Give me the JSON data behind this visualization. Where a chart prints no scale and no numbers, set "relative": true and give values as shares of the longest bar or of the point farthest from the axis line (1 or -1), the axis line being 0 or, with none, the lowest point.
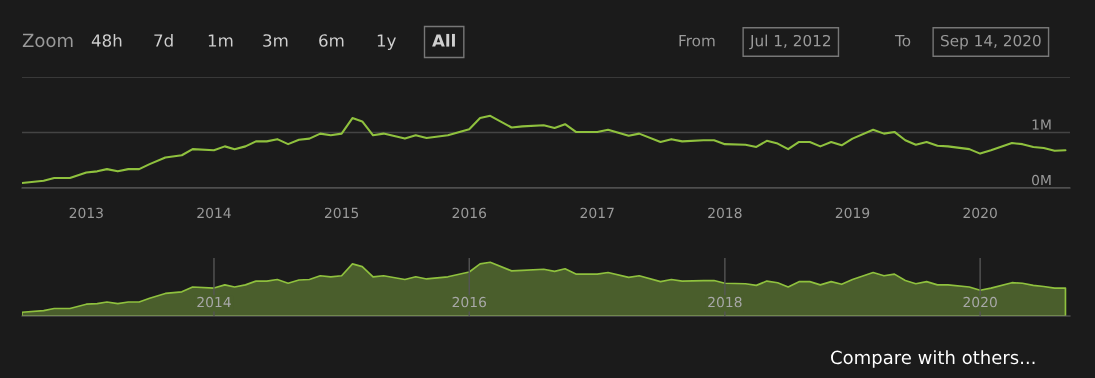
{
  "chart_data": [
    {
      "type": "line",
      "x": [
        "2012-07",
        "2012-09",
        "2012-10",
        "2012-11-15",
        "2013-01",
        "2013-02",
        "2013-03",
        "2013-04",
        "2013-05",
        "2013-06",
        "2013-07",
        "2013-08-15",
        "2013-10",
        "2013-11",
        "2014-01",
        "2014-02",
        "2014-03",
        "2014-04",
        "2014-05",
        "2014-06",
        "2014-07",
        "2014-08",
        "2014-09",
        "2014-10",
        "2014-11",
        "2014-12",
        "2015-01",
        "2015-02",
        "2015-03",
        "2015-04",
        "2015-05",
        "2015-07",
        "2015-08",
        "2015-09",
        "2015-11",
        "2016-01",
        "2016-02",
        "2016-03",
        "2016-05",
        "2016-06",
        "2016-08",
        "2016-09",
        "2016-10",
        "2016-11",
        "2017-01",
        "2017-02",
        "2017-04",
        "2017-05",
        "2017-07",
        "2017-08",
        "2017-09",
        "2017-11",
        "2017-12",
        "2018-01",
        "2018-03",
        "2018-04",
        "2018-05",
        "2018-06",
        "2018-07",
        "2018-08",
        "2018-09",
        "2018-10",
        "2018-11",
        "2018-12",
        "2019-01",
        "2019-03",
        "2019-04",
        "2019-05",
        "2019-06",
        "2019-07",
        "2019-08",
        "2019-09",
        "2019-10",
        "2019-12",
        "2020-01",
        "2020-02",
        "2020-04",
        "2020-05",
        "2020-06",
        "2020-07",
        "2020-08",
        "2020-09"
      ],
      "series": [
        {
          "color": "#8fc13e",
          "values": [
            0.09,
            0.13,
            0.18,
            0.18,
            0.28,
            0.3,
            0.34,
            0.3,
            0.34,
            0.34,
            0.43,
            0.55,
            0.59,
            0.7,
            0.68,
            0.75,
            0.7,
            0.75,
            0.84,
            0.84,
            0.88,
            0.79,
            0.87,
            0.89,
            0.98,
            0.95,
            0.98,
            1.26,
            1.2,
            0.95,
            0.98,
            0.89,
            0.95,
            0.9,
            0.95,
            1.06,
            1.26,
            1.3,
            1.09,
            1.11,
            1.13,
            1.08,
            1.15,
            1.01,
            1.01,
            1.05,
            0.94,
            0.98,
            0.83,
            0.88,
            0.84,
            0.86,
            0.86,
            0.79,
            0.78,
            0.74,
            0.85,
            0.8,
            0.7,
            0.83,
            0.83,
            0.75,
            0.83,
            0.77,
            0.89,
            1.05,
            0.98,
            1.01,
            0.86,
            0.78,
            0.83,
            0.76,
            0.75,
            0.7,
            0.62,
            0.68,
            0.81,
            0.79,
            0.74,
            0.72,
            0.67,
            0.68
          ]
        }
      ],
      "xlim": [
        "2012-07",
        "2020-09-14"
      ],
      "xticks": [
        {
          "value": "2013",
          "label": "2013"
        },
        {
          "value": "2014",
          "label": "2014"
        },
        {
          "value": "2015",
          "label": "2015"
        },
        {
          "value": "2016",
          "label": "2016"
        },
        {
          "value": "2017",
          "label": "2017"
        },
        {
          "value": "2018",
          "label": "2018"
        },
        {
          "value": "2019",
          "label": "2019"
        },
        {
          "value": "2020",
          "label": "2020"
        }
      ],
      "ylim": [
        0,
        2
      ],
      "yticks": [
        {
          "value": 0,
          "label": "0M"
        },
        {
          "value": 1,
          "label": "1M"
        },
        {
          "value": 2,
          "label": null
        }
      ],
      "grid": "y",
      "legend": false,
      "annotations": [
        "Zoom",
        "48h",
        "7d",
        "1m",
        "3m",
        "6m",
        "1y",
        "All",
        "From",
        "Jul 1, 2012",
        "To",
        "Sep 14, 2020",
        "Compare with others..."
      ]
    },
    {
      "type": "area",
      "relative": true,
      "grid": "x",
      "tick_labels": "x",
      "legend": false,
      "x": [
        "2012-07",
        "2012-09",
        "2012-10",
        "2012-11-15",
        "2013-01",
        "2013-02",
        "2013-03",
        "2013-04",
        "2013-05",
        "2013-06",
        "2013-07",
        "2013-08-15",
        "2013-10",
        "2013-11",
        "2014-01",
        "2014-02",
        "2014-03",
        "2014-04",
        "2014-05",
        "2014-06",
        "2014-07",
        "2014-08",
        "2014-09",
        "2014-10",
        "2014-11",
        "2014-12",
        "2015-01",
        "2015-02",
        "2015-03",
        "2015-04",
        "2015-05",
        "2015-07",
        "2015-08",
        "2015-09",
        "2015-11",
        "2016-01",
        "2016-02",
        "2016-03",
        "2016-05",
        "2016-06",
        "2016-08",
        "2016-09",
        "2016-10",
        "2016-11",
        "2017-01",
        "2017-02",
        "2017-04",
        "2017-05",
        "2017-07",
        "2017-08",
        "2017-09",
        "2017-11",
        "2017-12",
        "2018-01",
        "2018-03",
        "2018-04",
        "2018-05",
        "2018-06",
        "2018-07",
        "2018-08",
        "2018-09",
        "2018-10",
        "2018-11",
        "2018-12",
        "2019-01",
        "2019-03",
        "2019-04",
        "2019-05",
        "2019-06",
        "2019-07",
        "2019-08",
        "2019-09",
        "2019-10",
        "2019-12",
        "2020-01",
        "2020-02",
        "2020-04",
        "2020-05",
        "2020-06",
        "2020-07",
        "2020-08",
        "2020-09"
      ],
      "series": [
        {
          "color": "#8fc13e",
          "values": [
            0.07,
            0.1,
            0.14,
            0.14,
            0.22,
            0.23,
            0.26,
            0.23,
            0.26,
            0.26,
            0.33,
            0.42,
            0.45,
            0.54,
            0.52,
            0.58,
            0.54,
            0.58,
            0.65,
            0.65,
            0.68,
            0.61,
            0.67,
            0.68,
            0.75,
            0.73,
            0.75,
            0.97,
            0.92,
            0.73,
            0.75,
            0.68,
            0.73,
            0.69,
            0.73,
            0.82,
            0.97,
            1.0,
            0.84,
            0.85,
            0.87,
            0.83,
            0.88,
            0.78,
            0.78,
            0.81,
            0.72,
            0.75,
            0.64,
            0.68,
            0.65,
            0.66,
            0.66,
            0.61,
            0.6,
            0.57,
            0.65,
            0.62,
            0.54,
            0.64,
            0.64,
            0.58,
            0.64,
            0.59,
            0.68,
            0.81,
            0.75,
            0.78,
            0.66,
            0.6,
            0.64,
            0.58,
            0.58,
            0.54,
            0.48,
            0.52,
            0.62,
            0.61,
            0.57,
            0.55,
            0.52,
            0.52
          ]
        }
      ],
      "xlim": [
        "2012-07",
        "2020-09-14"
      ],
      "xticks": [
        {
          "value": "2014",
          "label": "2014"
        },
        {
          "value": "2016",
          "label": "2016"
        },
        {
          "value": "2018",
          "label": "2018"
        },
        {
          "value": "2020",
          "label": "2020"
        }
      ]
    }
  ]
}
